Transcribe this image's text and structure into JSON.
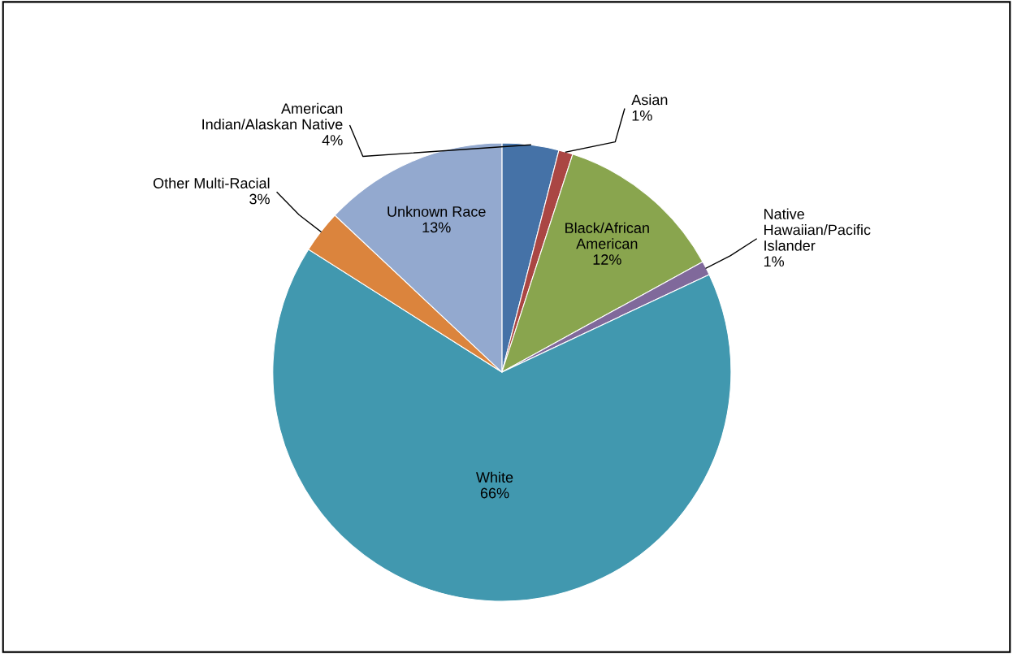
{
  "chart_data": {
    "type": "pie",
    "categories": [
      "American\nIndian/Alaskan Native",
      "Asian",
      "Black/African\nAmerican",
      "Native\nHawaiian/Pacific\nIslander",
      "White",
      "Other Multi-Racial",
      "Unknown Race"
    ],
    "values": [
      4,
      1,
      12,
      1,
      66,
      3,
      13
    ],
    "value_labels": [
      "4%",
      "1%",
      "12%",
      "1%",
      "66%",
      "3%",
      "13%"
    ],
    "colors": [
      "#4572a7",
      "#aa4643",
      "#89a54e",
      "#80699b",
      "#4198af",
      "#db843d",
      "#93a9cf"
    ],
    "legend": false
  }
}
